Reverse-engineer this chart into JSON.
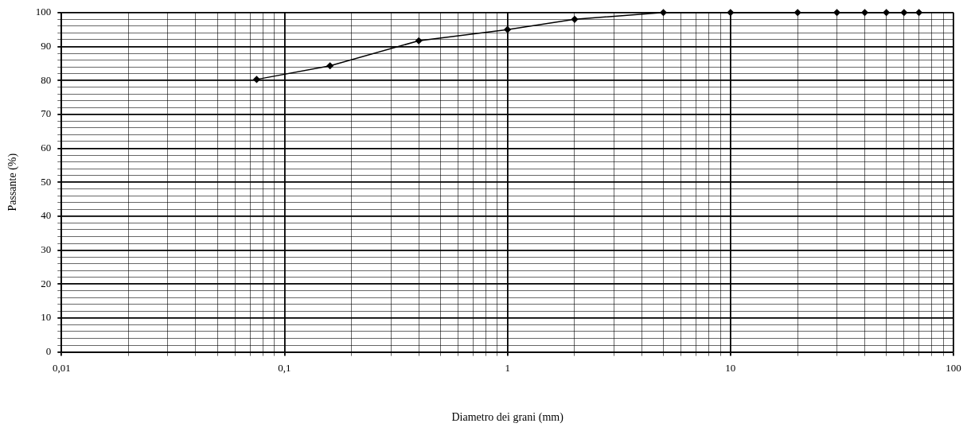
{
  "chart_data": {
    "type": "line",
    "xlabel": "Diametro dei grani (mm)",
    "ylabel": "Passante (%)",
    "log": "x",
    "grid": true,
    "marker": "diamond",
    "line_style": "solid",
    "legend": false,
    "x": [
      0.075,
      0.16,
      0.4,
      1,
      2,
      5,
      10,
      20,
      30,
      40,
      50,
      60,
      70
    ],
    "series": [
      {
        "color": "#000000",
        "values": [
          80.3,
          84.3,
          91.7,
          95,
          98,
          100,
          100,
          100,
          100,
          100,
          100,
          100,
          100
        ]
      }
    ],
    "xlim": [
      0.01,
      100
    ],
    "xticks": [
      {
        "value": 0.01,
        "label": "0,01"
      },
      {
        "value": 0.02,
        "label": null
      },
      {
        "value": 0.03,
        "label": null
      },
      {
        "value": 0.04,
        "label": null
      },
      {
        "value": 0.05,
        "label": null
      },
      {
        "value": 0.06,
        "label": null
      },
      {
        "value": 0.07,
        "label": null
      },
      {
        "value": 0.08,
        "label": null
      },
      {
        "value": 0.09,
        "label": null
      },
      {
        "value": 0.1,
        "label": "0,1"
      },
      {
        "value": 0.2,
        "label": null
      },
      {
        "value": 0.3,
        "label": null
      },
      {
        "value": 0.4,
        "label": null
      },
      {
        "value": 0.5,
        "label": null
      },
      {
        "value": 0.6,
        "label": null
      },
      {
        "value": 0.7,
        "label": null
      },
      {
        "value": 0.8,
        "label": null
      },
      {
        "value": 0.9,
        "label": null
      },
      1,
      {
        "value": 2,
        "label": null
      },
      {
        "value": 3,
        "label": null
      },
      {
        "value": 4,
        "label": null
      },
      {
        "value": 5,
        "label": null
      },
      {
        "value": 6,
        "label": null
      },
      {
        "value": 7,
        "label": null
      },
      {
        "value": 8,
        "label": null
      },
      {
        "value": 9,
        "label": null
      },
      10,
      {
        "value": 20,
        "label": null
      },
      {
        "value": 30,
        "label": null
      },
      {
        "value": 40,
        "label": null
      },
      {
        "value": 50,
        "label": null
      },
      {
        "value": 60,
        "label": null
      },
      {
        "value": 70,
        "label": null
      },
      {
        "value": 80,
        "label": null
      },
      {
        "value": 90,
        "label": null
      },
      100
    ],
    "ylim": [
      0,
      100
    ],
    "yticks": [
      0,
      {
        "value": 2,
        "label": null
      },
      {
        "value": 4,
        "label": null
      },
      {
        "value": 6,
        "label": null
      },
      {
        "value": 8,
        "label": null
      },
      10,
      {
        "value": 12,
        "label": null
      },
      {
        "value": 14,
        "label": null
      },
      {
        "value": 16,
        "label": null
      },
      {
        "value": 18,
        "label": null
      },
      20,
      {
        "value": 22,
        "label": null
      },
      {
        "value": 24,
        "label": null
      },
      {
        "value": 26,
        "label": null
      },
      {
        "value": 28,
        "label": null
      },
      30,
      {
        "value": 32,
        "label": null
      },
      {
        "value": 34,
        "label": null
      },
      {
        "value": 36,
        "label": null
      },
      {
        "value": 38,
        "label": null
      },
      40,
      {
        "value": 42,
        "label": null
      },
      {
        "value": 44,
        "label": null
      },
      {
        "value": 46,
        "label": null
      },
      {
        "value": 48,
        "label": null
      },
      50,
      {
        "value": 52,
        "label": null
      },
      {
        "value": 54,
        "label": null
      },
      {
        "value": 56,
        "label": null
      },
      {
        "value": 58,
        "label": null
      },
      60,
      {
        "value": 62,
        "label": null
      },
      {
        "value": 64,
        "label": null
      },
      {
        "value": 66,
        "label": null
      },
      {
        "value": 68,
        "label": null
      },
      70,
      {
        "value": 72,
        "label": null
      },
      {
        "value": 74,
        "label": null
      },
      {
        "value": 76,
        "label": null
      },
      {
        "value": 78,
        "label": null
      },
      80,
      {
        "value": 82,
        "label": null
      },
      {
        "value": 84,
        "label": null
      },
      {
        "value": 86,
        "label": null
      },
      {
        "value": 88,
        "label": null
      },
      90,
      {
        "value": 92,
        "label": null
      },
      {
        "value": 94,
        "label": null
      },
      {
        "value": 96,
        "label": null
      },
      {
        "value": 98,
        "label": null
      },
      100
    ]
  }
}
